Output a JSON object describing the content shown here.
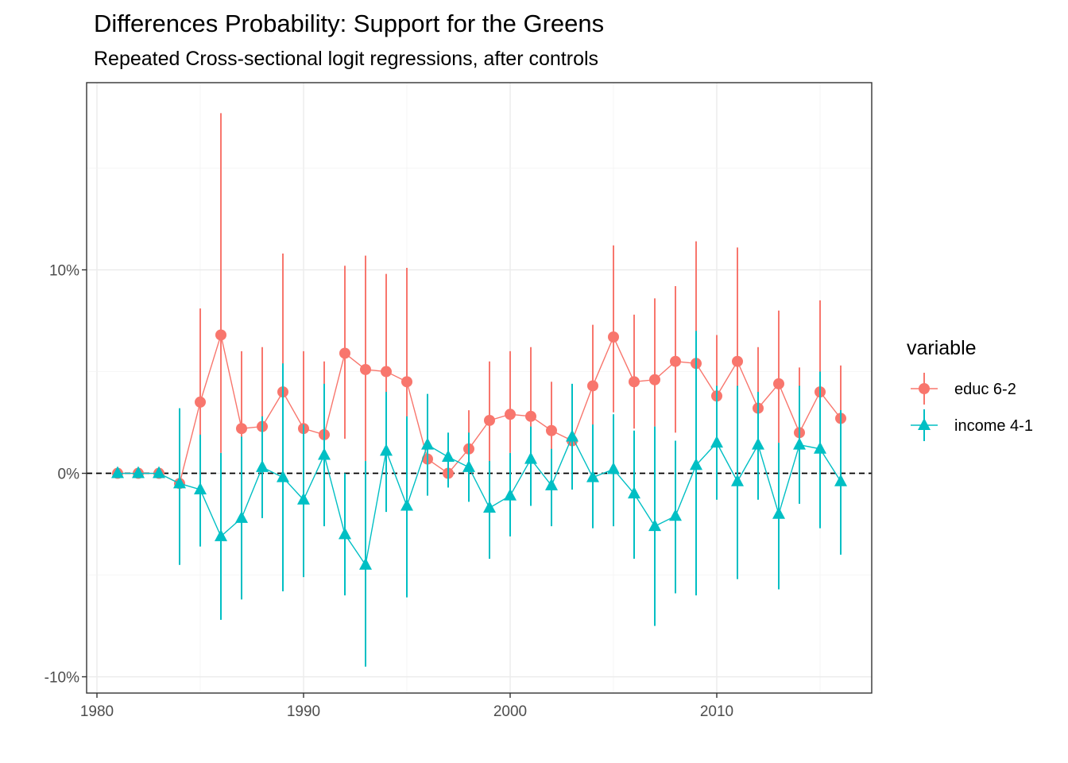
{
  "chart_data": {
    "type": "line",
    "title": "Differences Probability: Support for the Greens",
    "subtitle": "Repeated Cross-sectional logit regressions, after controls",
    "xlabel": "",
    "ylabel": "",
    "xlim": [
      1979.5,
      2017.5
    ],
    "ylim": [
      -10.8,
      19.2
    ],
    "x_ticks": [
      1980,
      1990,
      2000,
      2010
    ],
    "x_tick_labels": [
      "1980",
      "1990",
      "2000",
      "2010"
    ],
    "y_ticks": [
      -10,
      0,
      10
    ],
    "y_tick_labels": [
      "-10%",
      "0%",
      "10%"
    ],
    "grid": true,
    "reference_line": 0,
    "legend": {
      "title": "variable",
      "position": "right"
    },
    "x": [
      1981,
      1982,
      1983,
      1984,
      1985,
      1986,
      1987,
      1988,
      1989,
      1990,
      1991,
      1992,
      1993,
      1994,
      1995,
      1996,
      1997,
      1998,
      1999,
      2000,
      2001,
      2002,
      2003,
      2004,
      2005,
      2006,
      2007,
      2008,
      2009,
      2010,
      2011,
      2012,
      2013,
      2014,
      2015,
      2016
    ],
    "series": [
      {
        "name": "educ 6-2",
        "color": "#F8766D",
        "marker": "circle",
        "values": [
          0,
          0,
          0,
          -0.5,
          3.5,
          6.8,
          2.2,
          2.3,
          4.0,
          2.2,
          1.9,
          5.9,
          5.1,
          5.0,
          4.5,
          0.7,
          0.0,
          1.2,
          2.6,
          2.9,
          2.8,
          2.1,
          1.6,
          4.3,
          6.7,
          4.5,
          4.6,
          5.5,
          5.4,
          3.8,
          5.5,
          3.2,
          4.4,
          2.0,
          4.0,
          2.7
        ],
        "lower": [
          0,
          0,
          0,
          -0.7,
          -0.5,
          1.0,
          -0.5,
          -0.2,
          -0.2,
          -0.3,
          -0.5,
          1.7,
          0.6,
          0.5,
          0.6,
          -1.0,
          -0.2,
          -0.5,
          0.5,
          1.0,
          -0.3,
          -0.2,
          -0.5,
          2.3,
          3.0,
          2.2,
          2.3,
          2.0,
          0.4,
          0.0,
          0.5,
          0.5,
          1.5,
          0.2,
          0.5,
          0.5
        ],
        "upper": [
          0,
          0,
          0,
          -0.3,
          8.1,
          17.7,
          6.0,
          6.2,
          10.8,
          6.0,
          5.5,
          10.2,
          10.7,
          9.8,
          10.1,
          2.0,
          0.2,
          3.1,
          5.5,
          6.0,
          6.2,
          4.5,
          3.3,
          7.3,
          11.2,
          7.8,
          8.6,
          9.2,
          11.4,
          6.8,
          11.1,
          6.2,
          8.0,
          5.2,
          8.5,
          5.3
        ]
      },
      {
        "name": "income 4-1",
        "color": "#00BFC4",
        "marker": "triangle",
        "values": [
          0,
          0,
          0,
          -0.5,
          -0.8,
          -3.1,
          -2.2,
          0.3,
          -0.2,
          -1.3,
          0.9,
          -3.0,
          -4.5,
          1.1,
          -1.6,
          1.4,
          0.8,
          0.3,
          -1.7,
          -1.1,
          0.7,
          -0.6,
          1.8,
          -0.2,
          0.2,
          -1.0,
          -2.6,
          -2.1,
          0.4,
          1.5,
          -0.4,
          1.4,
          -2.0,
          1.4,
          1.2,
          -0.4
        ],
        "lower": [
          0,
          0,
          0,
          -4.5,
          -3.6,
          -7.2,
          -6.2,
          -2.2,
          -5.8,
          -5.1,
          -2.6,
          -6.0,
          -9.5,
          -1.9,
          -6.1,
          -1.1,
          -0.7,
          -1.4,
          -4.2,
          -3.1,
          -1.6,
          -2.6,
          -0.8,
          -2.7,
          -2.6,
          -4.2,
          -7.5,
          -5.9,
          -6.0,
          -1.3,
          -5.2,
          -1.3,
          -5.7,
          -1.5,
          -2.7,
          -4.0
        ],
        "upper": [
          0,
          0,
          0,
          3.2,
          1.9,
          1.0,
          1.8,
          2.8,
          5.4,
          2.4,
          4.4,
          0.0,
          0.6,
          4.0,
          2.8,
          3.9,
          2.0,
          2.0,
          0.6,
          1.0,
          2.3,
          1.2,
          4.4,
          2.4,
          2.9,
          2.1,
          2.3,
          1.6,
          7.0,
          4.3,
          4.3,
          4.0,
          1.5,
          4.3,
          5.0,
          3.1
        ]
      }
    ]
  }
}
